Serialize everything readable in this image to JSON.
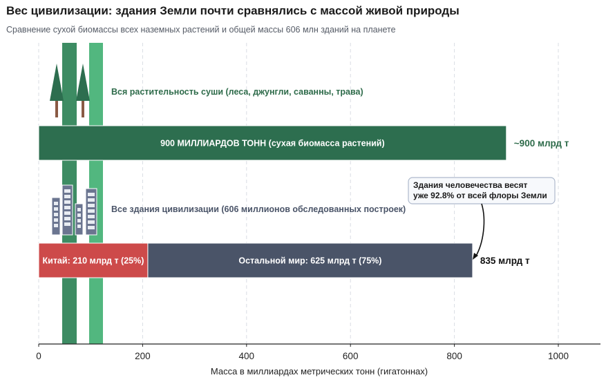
{
  "header": {
    "title": "Вес цивилизации: здания Земли почти сравнялись с массой живой природы",
    "subtitle": "Сравнение сухой биомассы всех наземных растений и общей массы 606 млн зданий на планете"
  },
  "chart_data": {
    "type": "bar",
    "orientation": "horizontal",
    "stacked": true,
    "xlabel": "Масса в миллиардах метрических тонн (гигатоннах)",
    "xlim": [
      0,
      1080
    ],
    "xticks": [
      0,
      200,
      400,
      600,
      800,
      1000
    ],
    "grid": true,
    "categories": [
      {
        "label": "Вся растительность суши (леса, джунгли, саванны, трава)",
        "icon": "tree-icon",
        "color": "#2e6b4a",
        "total_label": "~900 млрд т",
        "segments": [
          {
            "name": "900 МИЛЛИАРДОВ ТОНН (сухая биомасса растений)",
            "value": 900,
            "color": "#2d6e4f"
          }
        ]
      },
      {
        "label": "Все здания цивилизации (606 миллионов обследованных построек)",
        "icon": "building-icon",
        "color": "#4a5468",
        "total_label": "835 млрд т",
        "segments": [
          {
            "name": "Китай: 210 млрд т (25%)",
            "value": 210,
            "color": "#cd4a4a"
          },
          {
            "name": "Остальной мир: 625 млрд т (75%)",
            "value": 625,
            "color": "#4a5468"
          }
        ]
      }
    ],
    "annotation": {
      "lines": [
        "Здания человечества весят",
        "уже 92.8% от всей флоры Земли"
      ]
    },
    "decorations": {
      "stripe_colors": [
        "#3d8c63",
        "#52b77f"
      ]
    }
  }
}
